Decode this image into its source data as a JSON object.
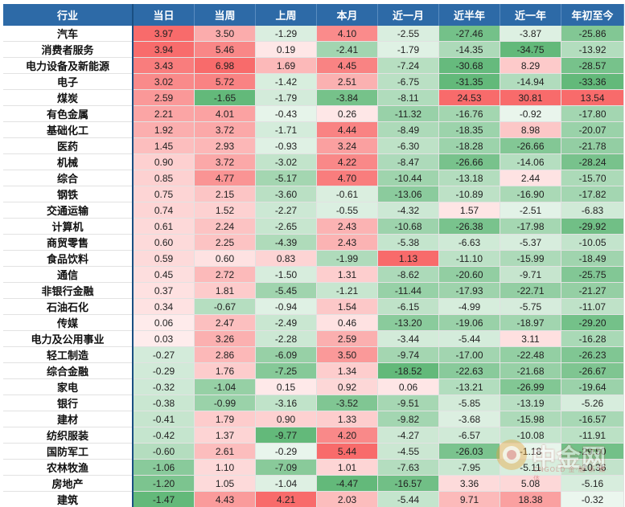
{
  "chart_data": {
    "type": "table",
    "columns": [
      "行业",
      "当日",
      "当周",
      "上周",
      "本月",
      "近一月",
      "近半年",
      "近一年",
      "年初至今"
    ],
    "rows": [
      {
        "name": "汽车",
        "values": [
          "3.97",
          "3.50",
          "-1.29",
          "4.10",
          "-2.55",
          "-27.46",
          "-3.87",
          "-25.86"
        ]
      },
      {
        "name": "消费者服务",
        "values": [
          "3.94",
          "5.46",
          "0.19",
          "-2.41",
          "-1.79",
          "-14.35",
          "-34.75",
          "-13.92"
        ]
      },
      {
        "name": "电力设备及新能源",
        "values": [
          "3.43",
          "6.98",
          "1.69",
          "4.45",
          "-7.24",
          "-30.68",
          "8.29",
          "-28.57"
        ]
      },
      {
        "name": "电子",
        "values": [
          "3.02",
          "5.72",
          "-1.42",
          "2.51",
          "-6.75",
          "-31.35",
          "-14.94",
          "-33.36"
        ]
      },
      {
        "name": "煤炭",
        "values": [
          "2.59",
          "-1.65",
          "-1.79",
          "-3.84",
          "-8.11",
          "24.53",
          "30.81",
          "13.54"
        ]
      },
      {
        "name": "有色金属",
        "values": [
          "2.21",
          "4.01",
          "-0.43",
          "0.26",
          "-11.32",
          "-16.76",
          "-0.92",
          "-17.80"
        ]
      },
      {
        "name": "基础化工",
        "values": [
          "1.92",
          "3.72",
          "-1.71",
          "4.44",
          "-8.49",
          "-18.35",
          "8.98",
          "-20.07"
        ]
      },
      {
        "name": "医药",
        "values": [
          "1.45",
          "2.93",
          "-0.93",
          "3.24",
          "-6.30",
          "-18.28",
          "-26.66",
          "-21.78"
        ]
      },
      {
        "name": "机械",
        "values": [
          "0.90",
          "3.72",
          "-3.02",
          "4.22",
          "-8.47",
          "-26.66",
          "-14.06",
          "-28.24"
        ]
      },
      {
        "name": "综合",
        "values": [
          "0.85",
          "4.77",
          "-5.17",
          "4.70",
          "-10.44",
          "-13.18",
          "2.44",
          "-15.70"
        ]
      },
      {
        "name": "钢铁",
        "values": [
          "0.75",
          "2.15",
          "-3.60",
          "-0.61",
          "-13.06",
          "-10.89",
          "-16.90",
          "-17.82"
        ]
      },
      {
        "name": "交通运输",
        "values": [
          "0.74",
          "1.52",
          "-2.27",
          "-0.55",
          "-4.32",
          "1.57",
          "-2.51",
          "-6.83"
        ]
      },
      {
        "name": "计算机",
        "values": [
          "0.61",
          "2.24",
          "-2.65",
          "2.43",
          "-10.68",
          "-26.38",
          "-17.98",
          "-29.92"
        ]
      },
      {
        "name": "商贸零售",
        "values": [
          "0.60",
          "2.25",
          "-4.39",
          "2.43",
          "-5.38",
          "-6.63",
          "-5.37",
          "-10.05"
        ]
      },
      {
        "name": "食品饮料",
        "values": [
          "0.59",
          "0.60",
          "0.83",
          "-1.99",
          "1.13",
          "-11.10",
          "-15.99",
          "-18.49"
        ]
      },
      {
        "name": "通信",
        "values": [
          "0.45",
          "2.72",
          "-1.50",
          "1.31",
          "-8.62",
          "-20.60",
          "-9.71",
          "-25.75"
        ]
      },
      {
        "name": "非银行金融",
        "values": [
          "0.37",
          "1.81",
          "-5.45",
          "-1.21",
          "-11.44",
          "-17.93",
          "-22.71",
          "-21.27"
        ]
      },
      {
        "name": "石油石化",
        "values": [
          "0.34",
          "-0.67",
          "-0.94",
          "1.54",
          "-6.15",
          "-4.99",
          "-5.75",
          "-11.07"
        ]
      },
      {
        "name": "传媒",
        "values": [
          "0.06",
          "2.47",
          "-2.49",
          "0.46",
          "-13.20",
          "-19.06",
          "-18.97",
          "-29.20"
        ]
      },
      {
        "name": "电力及公用事业",
        "values": [
          "0.03",
          "3.26",
          "-2.28",
          "2.59",
          "-3.44",
          "-5.44",
          "3.11",
          "-16.28"
        ]
      },
      {
        "name": "轻工制造",
        "values": [
          "-0.27",
          "2.86",
          "-6.09",
          "3.50",
          "-9.74",
          "-17.00",
          "-22.48",
          "-26.23"
        ]
      },
      {
        "name": "综合金融",
        "values": [
          "-0.29",
          "1.76",
          "-7.25",
          "1.34",
          "-18.52",
          "-22.63",
          "-21.68",
          "-26.67"
        ]
      },
      {
        "name": "家电",
        "values": [
          "-0.32",
          "-1.04",
          "0.15",
          "0.92",
          "0.06",
          "-13.21",
          "-26.99",
          "-19.64"
        ]
      },
      {
        "name": "银行",
        "values": [
          "-0.38",
          "-0.99",
          "-3.16",
          "-3.52",
          "-9.51",
          "-5.85",
          "-13.19",
          "-5.26"
        ]
      },
      {
        "name": "建材",
        "values": [
          "-0.41",
          "1.79",
          "0.90",
          "1.33",
          "-9.82",
          "-3.68",
          "-15.98",
          "-16.57"
        ]
      },
      {
        "name": "纺织服装",
        "values": [
          "-0.42",
          "1.37",
          "-9.77",
          "4.20",
          "-4.27",
          "-6.57",
          "-10.08",
          "-11.91"
        ]
      },
      {
        "name": "国防军工",
        "values": [
          "-0.60",
          "2.61",
          "-0.29",
          "5.44",
          "-4.55",
          "-26.03",
          "-1.18",
          "-29.50"
        ]
      },
      {
        "name": "农林牧渔",
        "values": [
          "-1.06",
          "1.10",
          "-7.09",
          "1.01",
          "-7.63",
          "-7.95",
          "-5.11",
          "-10.36"
        ]
      },
      {
        "name": "房地产",
        "values": [
          "-1.20",
          "1.05",
          "-1.04",
          "-4.47",
          "-16.57",
          "3.36",
          "5.08",
          "-5.16"
        ]
      },
      {
        "name": "建筑",
        "values": [
          "-1.47",
          "4.43",
          "4.21",
          "2.03",
          "-5.44",
          "9.71",
          "18.38",
          "-0.32"
        ]
      }
    ],
    "color_scale": {
      "positive": "#f86b6b",
      "neutral": "#ffffff",
      "negative": "#63b97a"
    }
  },
  "watermark": {
    "text": "中金网",
    "sub": "CNGOLD 金·融·新·媒·体"
  }
}
